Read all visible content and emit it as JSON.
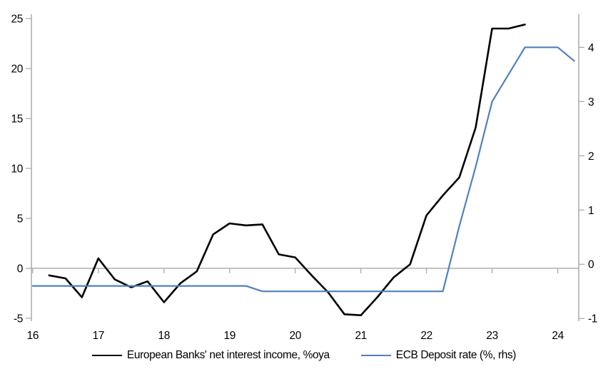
{
  "figure": {
    "background": "#ffffff"
  },
  "chart_data": {
    "type": "line",
    "title": "",
    "grid": "zero-line-only",
    "axis_color": "#a6a6a6",
    "legend_position": "bottom-center",
    "x_axis": {
      "tick_labels": [
        "16",
        "17",
        "18",
        "19",
        "20",
        "21",
        "22",
        "23",
        "24"
      ],
      "tick_values": [
        16,
        17,
        18,
        19,
        20,
        21,
        22,
        23,
        24
      ],
      "range": [
        15.98,
        24.32
      ]
    },
    "left_axis": {
      "tick_labels": [
        "-5",
        "0",
        "5",
        "10",
        "15",
        "20",
        "25"
      ],
      "tick_values": [
        -5,
        0,
        5,
        10,
        15,
        20,
        25
      ],
      "range": [
        -5.29,
        25.43
      ]
    },
    "right_axis": {
      "tick_labels": [
        "-1",
        "0",
        "1",
        "2",
        "3",
        "4"
      ],
      "tick_values": [
        -1,
        0,
        1,
        2,
        3,
        4
      ],
      "range": [
        -1.05,
        4.61
      ]
    },
    "legend": [
      {
        "label": "European Banks' net interest income, %oya",
        "color": "#000000"
      },
      {
        "label": "ECB Deposit rate (%, rhs)",
        "color": "#4f81bd"
      }
    ],
    "series": [
      {
        "name": "European Banks' net interest income, %oya",
        "axis": "left",
        "color": "#000000",
        "stroke_width": 2.6,
        "x": [
          16.25,
          16.5,
          16.75,
          17.0,
          17.25,
          17.5,
          17.75,
          18.0,
          18.25,
          18.5,
          18.75,
          19.0,
          19.25,
          19.5,
          19.75,
          20.0,
          20.25,
          20.5,
          20.75,
          21.0,
          21.25,
          21.5,
          21.75,
          22.0,
          22.25,
          22.5,
          22.75,
          23.0,
          23.25,
          23.5
        ],
        "values": [
          -0.7,
          -1.0,
          -2.9,
          1.0,
          -1.1,
          -1.9,
          -1.3,
          -3.4,
          -1.5,
          -0.3,
          3.4,
          4.5,
          4.3,
          4.4,
          1.4,
          1.1,
          -0.7,
          -2.4,
          -4.6,
          -4.7,
          -2.9,
          -0.9,
          0.4,
          5.3,
          7.3,
          9.1,
          14.1,
          24.0,
          24.0,
          24.4
        ]
      },
      {
        "name": "ECB Deposit rate (%, rhs)",
        "axis": "right",
        "color": "#4f81bd",
        "stroke_width": 2.2,
        "x": [
          16.0,
          16.25,
          16.5,
          16.75,
          17.0,
          17.25,
          17.5,
          17.75,
          18.0,
          18.25,
          18.5,
          18.75,
          19.0,
          19.25,
          19.5,
          19.75,
          20.0,
          20.25,
          20.5,
          20.75,
          21.0,
          21.25,
          21.5,
          21.75,
          22.0,
          22.25,
          22.5,
          22.75,
          23.0,
          23.25,
          23.5,
          23.75,
          24.0,
          24.25
        ],
        "values": [
          -0.4,
          -0.4,
          -0.4,
          -0.4,
          -0.4,
          -0.4,
          -0.4,
          -0.4,
          -0.4,
          -0.4,
          -0.4,
          -0.4,
          -0.4,
          -0.4,
          -0.5,
          -0.5,
          -0.5,
          -0.5,
          -0.5,
          -0.5,
          -0.5,
          -0.5,
          -0.5,
          -0.5,
          -0.5,
          -0.5,
          0.7,
          1.8,
          3.0,
          3.5,
          4.0,
          4.0,
          4.0,
          3.75
        ]
      }
    ]
  }
}
